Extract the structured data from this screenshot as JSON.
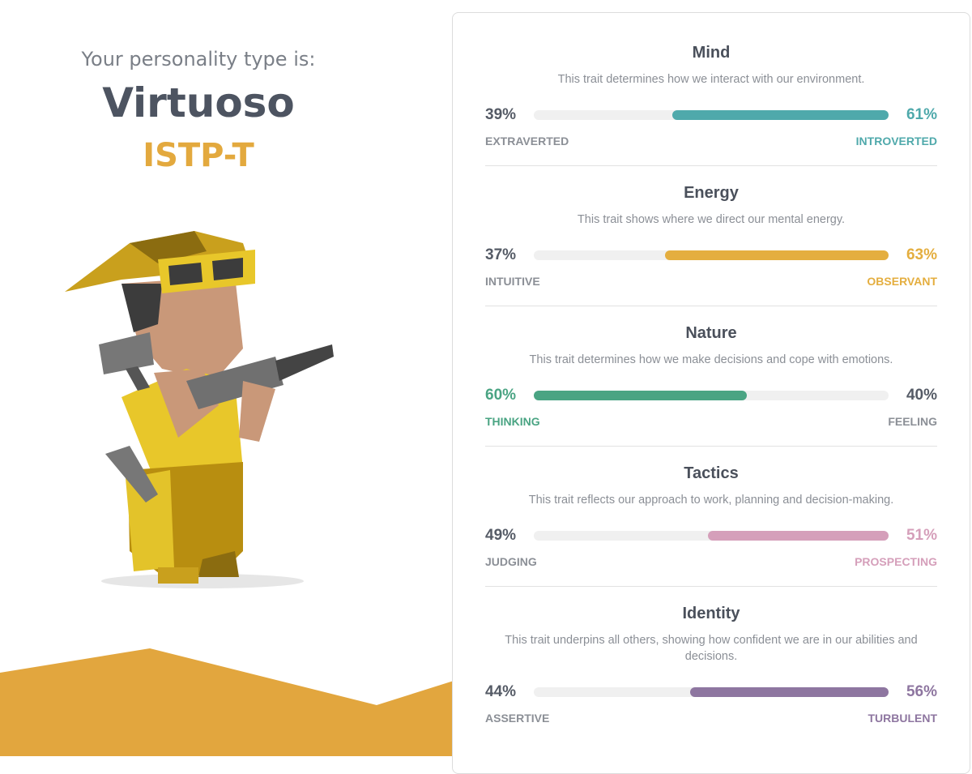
{
  "header": {
    "intro": "Your personality type is:",
    "type_name": "Virtuoso",
    "type_code": "ISTP-T"
  },
  "traits": [
    {
      "title": "Mind",
      "description": "This trait determines how we interact with our environment.",
      "values": [
        39,
        61
      ],
      "value_labels": [
        "39%",
        "61%"
      ],
      "labels": [
        "EXTRAVERTED",
        "INTROVERTED"
      ],
      "color": "#4fa9ab"
    },
    {
      "title": "Energy",
      "description": "This trait shows where we direct our mental energy.",
      "values": [
        37,
        63
      ],
      "value_labels": [
        "37%",
        "63%"
      ],
      "labels": [
        "INTUITIVE",
        "OBSERVANT"
      ],
      "color": "#e4ae3f"
    },
    {
      "title": "Nature",
      "description": "This trait determines how we make decisions and cope with emotions.",
      "values": [
        60,
        40
      ],
      "value_labels": [
        "60%",
        "40%"
      ],
      "labels": [
        "THINKING",
        "FEELING"
      ],
      "color": "#4aa483"
    },
    {
      "title": "Tactics",
      "description": "This trait reflects our approach to work, planning and decision-making.",
      "values": [
        49,
        51
      ],
      "value_labels": [
        "49%",
        "51%"
      ],
      "labels": [
        "JUDGING",
        "PROSPECTING"
      ],
      "color": "#d59fba"
    },
    {
      "title": "Identity",
      "description": "This trait underpins all others, showing how confident we are in our abilities and decisions.",
      "values": [
        44,
        56
      ],
      "value_labels": [
        "44%",
        "56%"
      ],
      "labels": [
        "ASSERTIVE",
        "TURBULENT"
      ],
      "color": "#8e76a0"
    }
  ]
}
